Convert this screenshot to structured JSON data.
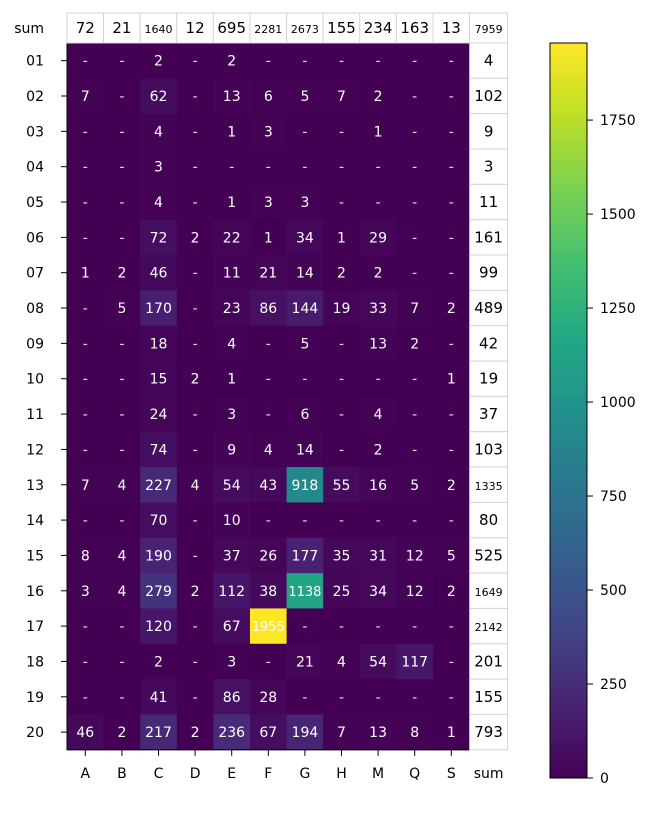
{
  "chart_data": {
    "type": "heatmap",
    "columns": [
      "A",
      "B",
      "C",
      "D",
      "E",
      "F",
      "G",
      "H",
      "M",
      "Q",
      "S"
    ],
    "rows": [
      "01",
      "02",
      "03",
      "04",
      "05",
      "06",
      "07",
      "08",
      "09",
      "10",
      "11",
      "12",
      "13",
      "14",
      "15",
      "16",
      "17",
      "18",
      "19",
      "20"
    ],
    "sum_label": "sum",
    "empty_cell_label": "-",
    "values": [
      [
        0,
        0,
        2,
        0,
        2,
        0,
        0,
        0,
        0,
        0,
        0
      ],
      [
        7,
        0,
        62,
        0,
        13,
        6,
        5,
        7,
        2,
        0,
        0
      ],
      [
        0,
        0,
        4,
        0,
        1,
        3,
        0,
        0,
        1,
        0,
        0
      ],
      [
        0,
        0,
        3,
        0,
        0,
        0,
        0,
        0,
        0,
        0,
        0
      ],
      [
        0,
        0,
        4,
        0,
        1,
        3,
        3,
        0,
        0,
        0,
        0
      ],
      [
        0,
        0,
        72,
        2,
        22,
        1,
        34,
        1,
        29,
        0,
        0
      ],
      [
        1,
        2,
        46,
        0,
        11,
        21,
        14,
        2,
        2,
        0,
        0
      ],
      [
        0,
        5,
        170,
        0,
        23,
        86,
        144,
        19,
        33,
        7,
        2
      ],
      [
        0,
        0,
        18,
        0,
        4,
        0,
        5,
        0,
        13,
        2,
        0
      ],
      [
        0,
        0,
        15,
        2,
        1,
        0,
        0,
        0,
        0,
        0,
        1
      ],
      [
        0,
        0,
        24,
        0,
        3,
        0,
        6,
        0,
        4,
        0,
        0
      ],
      [
        0,
        0,
        74,
        0,
        9,
        4,
        14,
        0,
        2,
        0,
        0
      ],
      [
        7,
        4,
        227,
        4,
        54,
        43,
        918,
        55,
        16,
        5,
        2
      ],
      [
        0,
        0,
        70,
        0,
        10,
        0,
        0,
        0,
        0,
        0,
        0
      ],
      [
        8,
        4,
        190,
        0,
        37,
        26,
        177,
        35,
        31,
        12,
        5
      ],
      [
        3,
        4,
        279,
        2,
        112,
        38,
        1138,
        25,
        34,
        12,
        2
      ],
      [
        0,
        0,
        120,
        0,
        67,
        1955,
        0,
        0,
        0,
        0,
        0
      ],
      [
        0,
        0,
        2,
        0,
        3,
        0,
        21,
        4,
        54,
        117,
        0
      ],
      [
        0,
        0,
        41,
        0,
        86,
        28,
        0,
        0,
        0,
        0,
        0
      ],
      [
        46,
        2,
        217,
        2,
        236,
        67,
        194,
        7,
        13,
        8,
        1
      ]
    ],
    "column_sums": [
      "72",
      "21",
      "1640",
      "12",
      "695",
      "2281",
      "2673",
      "155",
      "234",
      "163",
      "13"
    ],
    "total": "7959",
    "row_sums": [
      "4",
      "102",
      "9",
      "3",
      "11",
      "161",
      "99",
      "489",
      "42",
      "19",
      "37",
      "103",
      "1335",
      "80",
      "525",
      "1649",
      "2142",
      "201",
      "155",
      "793"
    ],
    "colormap": "viridis",
    "colorbar": {
      "min": 0,
      "max": 1955,
      "ticks": [
        "0",
        "250",
        "500",
        "750",
        "1000",
        "1250",
        "1500",
        "1750"
      ]
    },
    "background_color": "#440154",
    "text_color_dark_cells": "#ffffff",
    "text_color_light_cells": "#ffffff"
  }
}
